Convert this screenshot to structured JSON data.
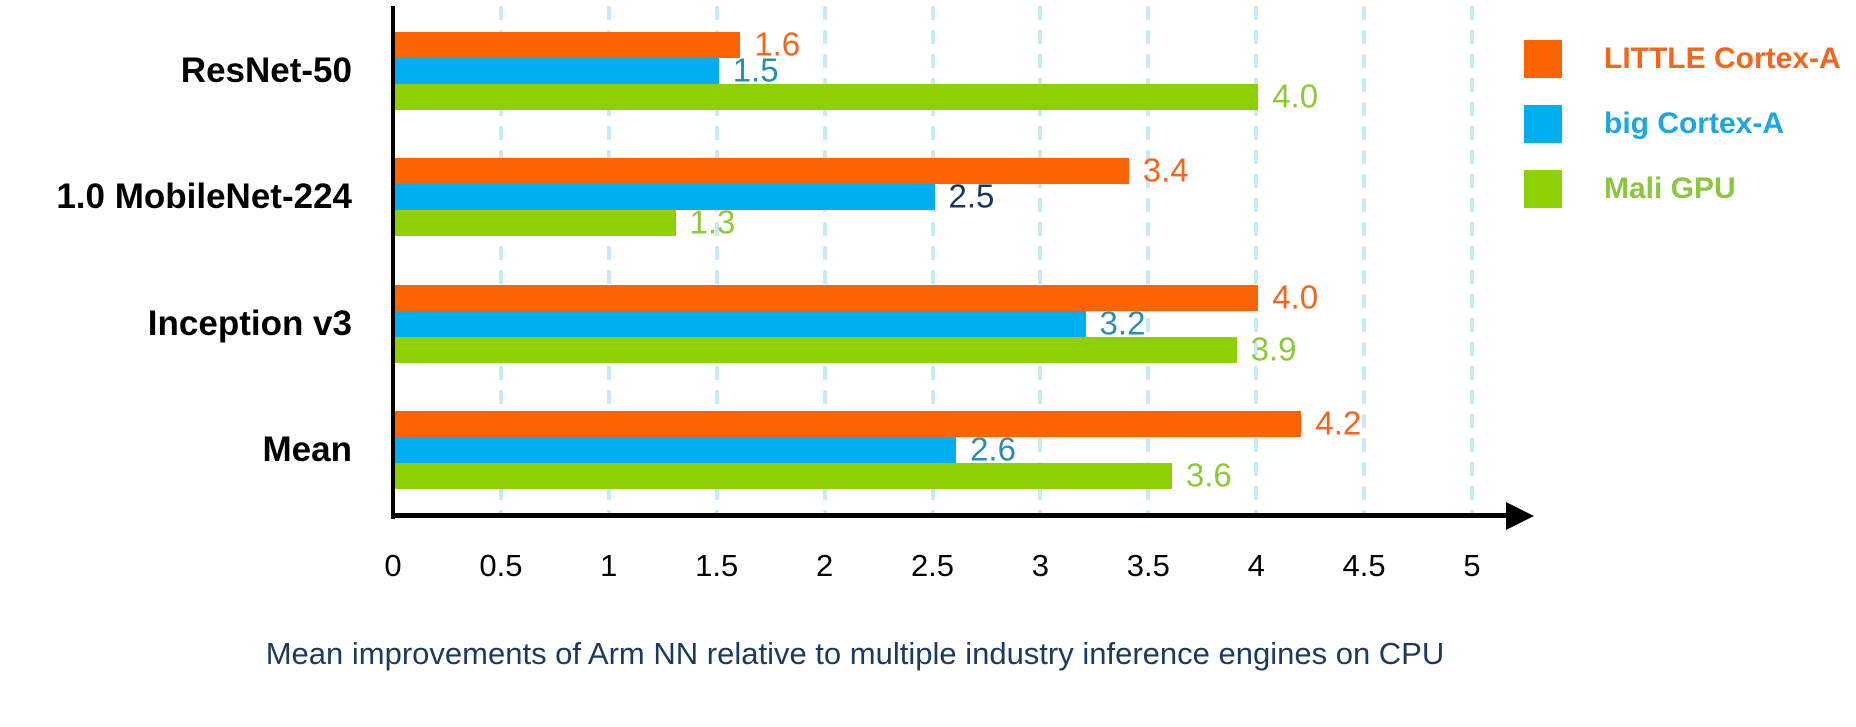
{
  "chart_data": {
    "type": "bar",
    "orientation": "horizontal",
    "title": "",
    "caption": "Mean improvements of Arm NN relative to multiple industry inference engines on CPU",
    "categories": [
      "ResNet-50",
      "1.0 MobileNet-224",
      "Inception v3",
      "Mean"
    ],
    "series": [
      {
        "name": "LITTLE Cortex-A",
        "bar_color": "#FB6400",
        "legend_text_color": "#F4661B",
        "values": [
          1.6,
          3.4,
          4.0,
          4.2
        ],
        "value_labels": [
          "1.6",
          "3.4",
          "4.0",
          "4.2"
        ],
        "value_label_colors": [
          "#F4661B",
          "#F4661B",
          "#F4661B",
          "#F4661B"
        ]
      },
      {
        "name": "big Cortex-A",
        "bar_color": "#00ADEF",
        "legend_text_color": "#1BA7E0",
        "values": [
          1.5,
          2.5,
          3.2,
          2.6
        ],
        "value_labels": [
          "1.5",
          "2.5",
          "3.2",
          "2.6"
        ],
        "value_label_colors": [
          "#2B8CB4",
          "#17365D",
          "#2B8CB4",
          "#2B8CB4"
        ]
      },
      {
        "name": "Mali GPU",
        "bar_color": "#8DD003",
        "legend_text_color": "#8CC63F",
        "values": [
          4.0,
          1.3,
          3.9,
          3.6
        ],
        "value_labels": [
          "4.0",
          "1.3",
          "3.9",
          "3.6"
        ],
        "value_label_colors": [
          "#8CCB33",
          "#8CCB33",
          "#8CCB33",
          "#8CCB33"
        ]
      }
    ],
    "xlim": [
      0,
      5
    ],
    "x_tick_step": 0.5,
    "x_tick_labels": [
      "0",
      "0.5",
      "1",
      "1.5",
      "2",
      "2.5",
      "3",
      "3.5",
      "4",
      "4.5",
      "5"
    ],
    "grid": true,
    "legend_position": "top-right",
    "colors": {
      "axis": "#000000",
      "gridline": "#C8EAF6",
      "category_label": "#000000",
      "tick_label": "#000000",
      "caption": "#1C3A5E"
    }
  }
}
